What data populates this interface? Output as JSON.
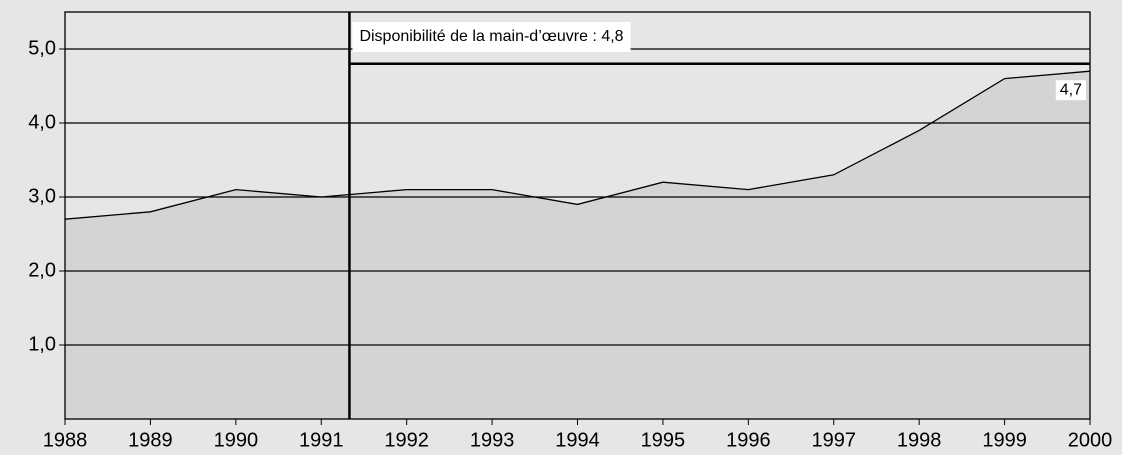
{
  "chart_data": {
    "type": "area",
    "x": [
      1988,
      1989,
      1990,
      1991,
      1992,
      1993,
      1994,
      1995,
      1996,
      1997,
      1998,
      1999,
      2000
    ],
    "series": [
      {
        "color": "#d4d4d4",
        "values": [
          2.7,
          2.8,
          3.1,
          3.0,
          3.1,
          3.1,
          2.9,
          3.2,
          3.1,
          3.3,
          3.9,
          4.6,
          4.7
        ],
        "value_labels": [
          null,
          null,
          null,
          null,
          null,
          null,
          null,
          null,
          null,
          null,
          null,
          null,
          "4,7"
        ]
      }
    ],
    "xlim": [
      1988,
      2000
    ],
    "xticks": [
      1988,
      1989,
      1990,
      1991,
      1992,
      1993,
      1994,
      1995,
      1996,
      1997,
      1998,
      1999,
      2000
    ],
    "ylim": [
      0,
      5.5
    ],
    "yticks": [
      {
        "value": 1,
        "label": "1,0"
      },
      {
        "value": 2,
        "label": "2,0"
      },
      {
        "value": 3,
        "label": "3,0"
      },
      {
        "value": 4,
        "label": "4,0"
      },
      {
        "value": 5,
        "label": "5,0"
      }
    ],
    "grid": true,
    "reference_line": {
      "value": 4.8,
      "x_start": 1991.33,
      "label": "Disponibilité de la main-d’œuvre : 4,8"
    }
  }
}
